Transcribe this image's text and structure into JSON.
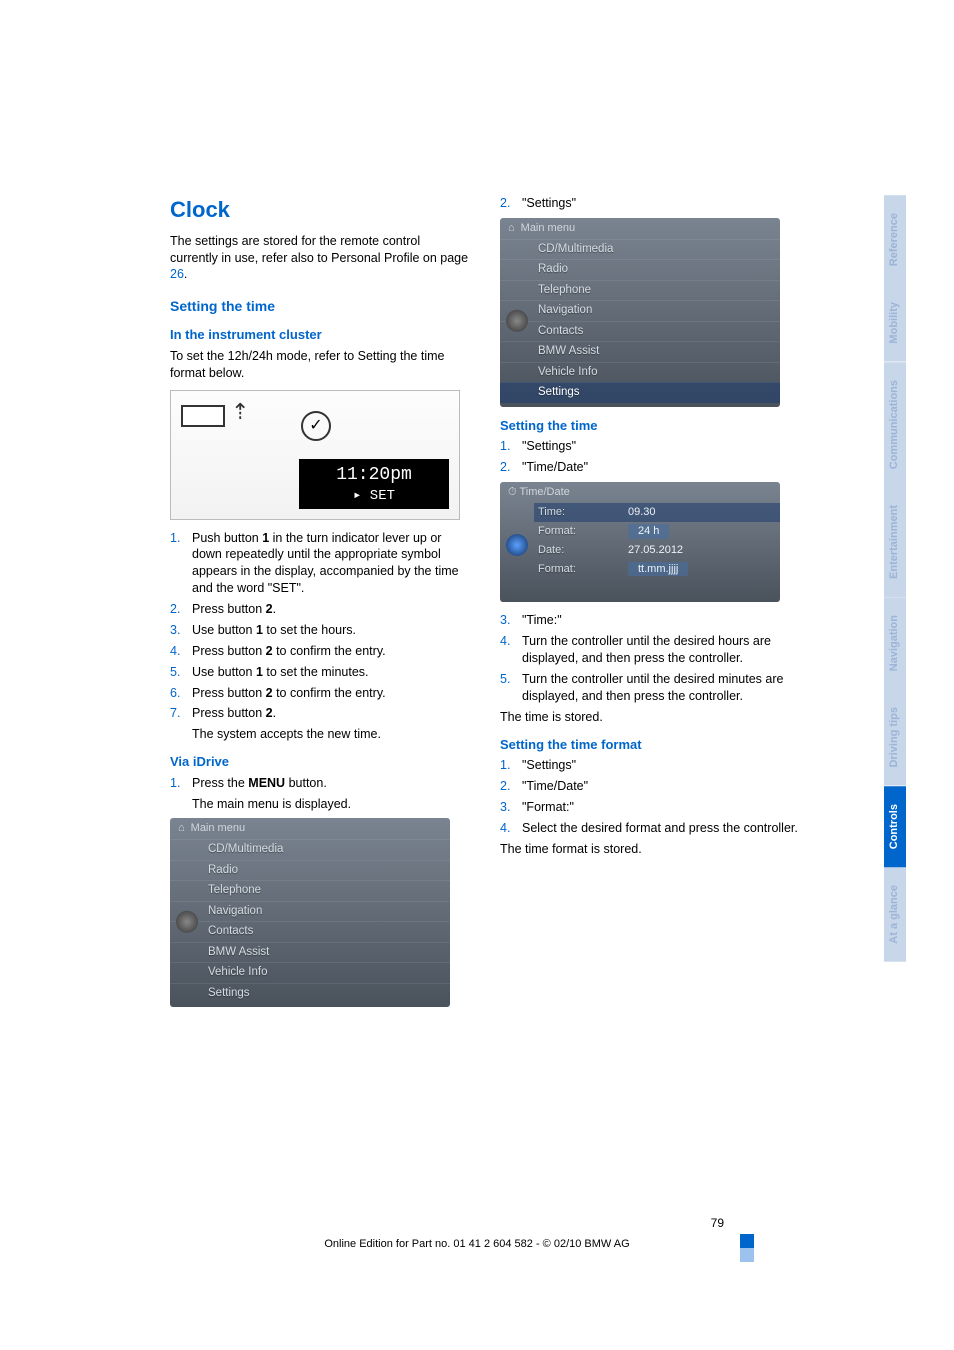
{
  "colors": {
    "link_blue": "#0066cc",
    "text_black": "#000000",
    "tab_active_bg": "#0066cc",
    "tab_dim_bg": "#c8d6ea",
    "tab_dim_text": "#9cb4d6",
    "menu_bg_top": "#7a8490",
    "menu_bg_bottom": "#4a525c",
    "menu_text": "#d6dde4",
    "menu_hl_bg": "rgba(30,60,110,0.55)"
  },
  "fonts": {
    "body_size_pt": 9,
    "h1_size_pt": 16,
    "h2_size_pt": 11,
    "h3_size_pt": 10
  },
  "left": {
    "h1": "Clock",
    "intro_a": "The settings are stored for the remote control currently in use, refer also to Personal Profile on page ",
    "intro_page": "26",
    "intro_b": ".",
    "h2_setting_time": "Setting the time",
    "h3_cluster": "In the instrument cluster",
    "cluster_p": "To set the 12h/24h mode, refer to Setting the time format below.",
    "cluster_time": "11:20pm",
    "cluster_set": "▸  SET",
    "steps": [
      "Push button 1 in the turn indicator lever up or down repeatedly until the appropriate symbol appears in the display, accompanied by the time and the word \"SET\".",
      "Press button 2.",
      "Use button 1 to set the hours.",
      "Press button 2 to confirm the entry.",
      "Use button 1 to set the minutes.",
      "Press button 2 to confirm the entry.",
      "Press button 2."
    ],
    "step7_sub": "The system accepts the new time.",
    "h3_idrive": "Via iDrive",
    "idrive_step1_a": "Press the ",
    "idrive_step1_b": "MENU",
    "idrive_step1_c": " button.",
    "idrive_step1_sub": "The main menu is displayed.",
    "menu_title": "Main menu",
    "menu_items": [
      "CD/Multimedia",
      "Radio",
      "Telephone",
      "Navigation",
      "Contacts",
      "BMW Assist",
      "Vehicle Info",
      "Settings"
    ]
  },
  "right": {
    "step2": "\"Settings\"",
    "menu_title": "Main menu",
    "menu_items": [
      "CD/Multimedia",
      "Radio",
      "Telephone",
      "Navigation",
      "Contacts",
      "BMW Assist",
      "Vehicle Info",
      "Settings"
    ],
    "menu_hl_index": 7,
    "h3_setting_time": "Setting the time",
    "st_steps12": [
      "\"Settings\"",
      "\"Time/Date\""
    ],
    "td_title": "Time/Date",
    "td_rows": [
      {
        "label": "Time:",
        "value": "09.30",
        "hl": true
      },
      {
        "label": "Format:",
        "value": "24 h",
        "box": true
      },
      {
        "label": "Date:",
        "value": "27.05.2012"
      },
      {
        "label": "Format:",
        "value": "tt.mm.jjjj",
        "box": true
      }
    ],
    "st_steps345": [
      "\"Time:\"",
      "Turn the controller until the desired hours are displayed, and then press the controller.",
      "Turn the controller until the desired minutes are displayed, and then press the controller."
    ],
    "time_stored": "The time is stored.",
    "h3_format": "Setting the time format",
    "fmt_steps": [
      "\"Settings\"",
      "\"Time/Date\"",
      "\"Format:\"",
      "Select the desired format and press the controller."
    ],
    "fmt_stored": "The time format is stored."
  },
  "tabs": [
    "Reference",
    "Mobility",
    "Communications",
    "Entertainment",
    "Navigation",
    "Driving tips",
    "Controls",
    "At a glance"
  ],
  "tabs_active_index": 6,
  "page_number": "79",
  "footer": "Online Edition for Part no. 01 41 2 604 582 - © 02/10 BMW AG"
}
